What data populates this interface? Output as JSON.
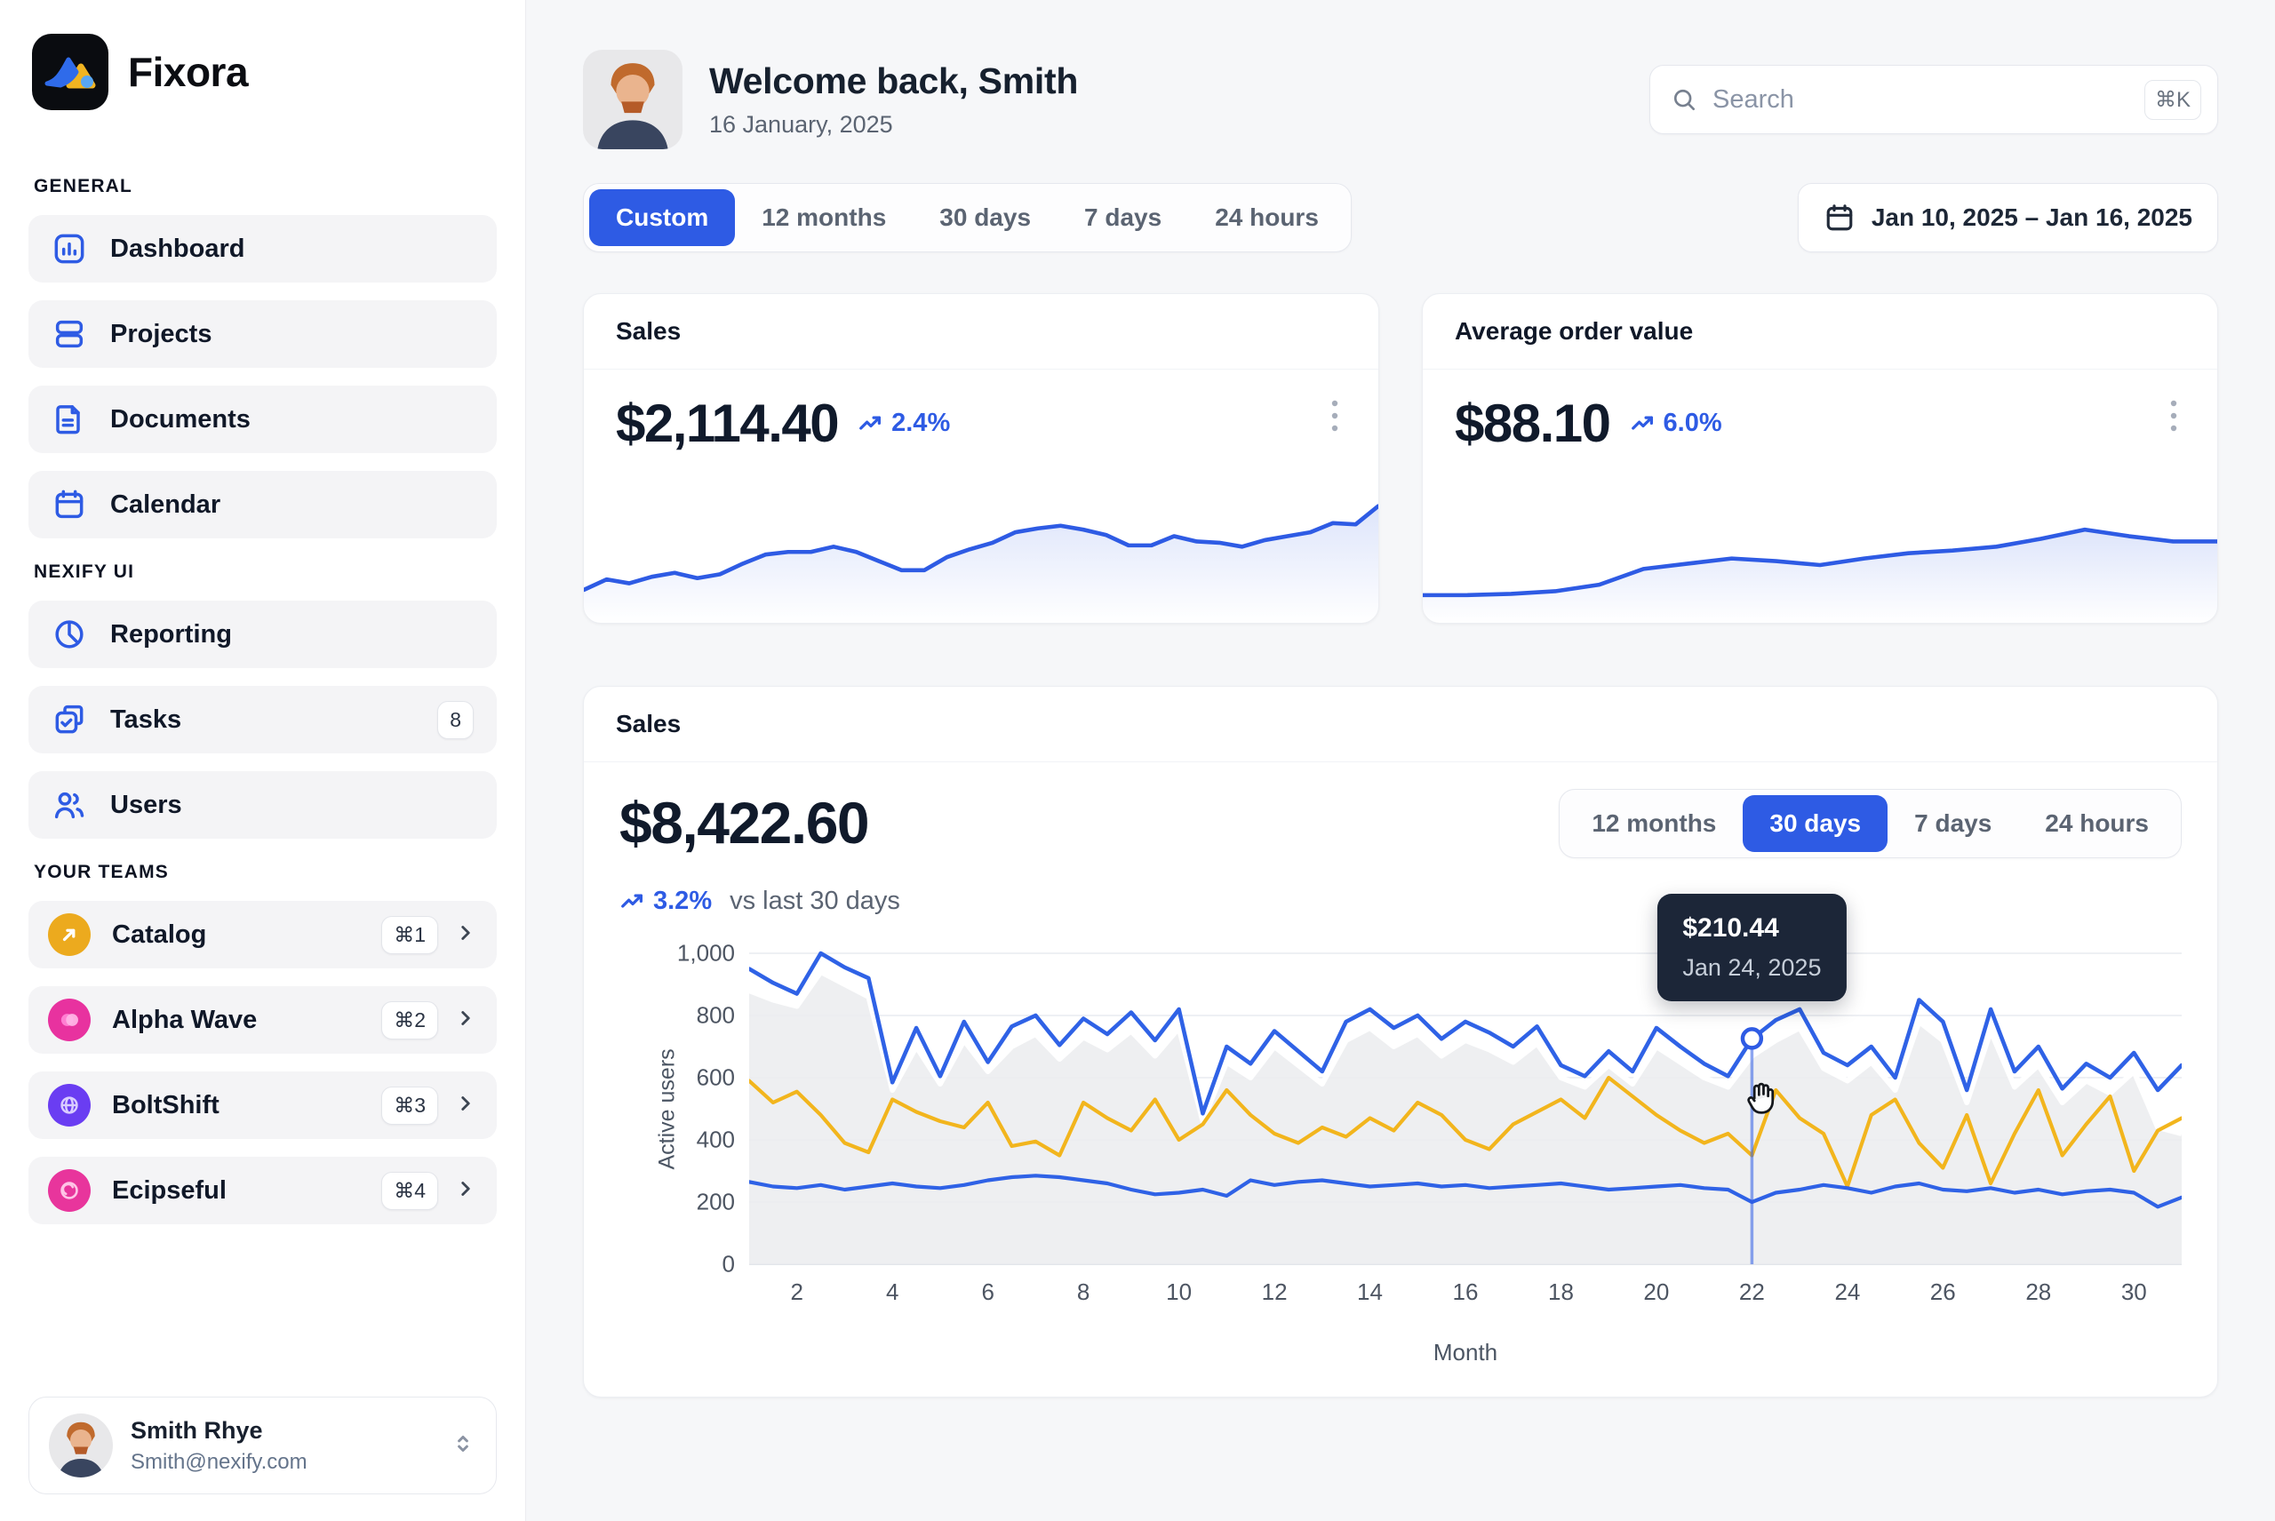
{
  "app": {
    "name": "Fixora"
  },
  "sidebar": {
    "sections": [
      {
        "label": "GENERAL",
        "items": [
          {
            "label": "Dashboard",
            "icon": "dashboard"
          },
          {
            "label": "Projects",
            "icon": "projects"
          },
          {
            "label": "Documents",
            "icon": "documents"
          },
          {
            "label": "Calendar",
            "icon": "calendar"
          }
        ]
      },
      {
        "label": "NEXIFY UI",
        "items": [
          {
            "label": "Reporting",
            "icon": "reporting"
          },
          {
            "label": "Tasks",
            "icon": "tasks",
            "badge": "8"
          },
          {
            "label": "Users",
            "icon": "users"
          }
        ]
      },
      {
        "label": "YOUR TEAMS",
        "teams": [
          {
            "name": "Catalog",
            "shortcut": "⌘1",
            "color": "#ecaa1e",
            "icon": "team-catalog"
          },
          {
            "name": "Alpha Wave",
            "shortcut": "⌘2",
            "color": "#e8329f",
            "icon": "team-alphawave"
          },
          {
            "name": "BoltShift",
            "shortcut": "⌘3",
            "color": "#6a3df2",
            "icon": "team-boltshift"
          },
          {
            "name": "Ecipseful",
            "shortcut": "⌘4",
            "color": "#e8359c",
            "icon": "team-ecipseful"
          }
        ]
      }
    ],
    "user": {
      "name": "Smith Rhye",
      "email": "Smith@nexify.com"
    }
  },
  "header": {
    "title": "Welcome back, Smith",
    "date": "16 January, 2025",
    "search": {
      "placeholder": "Search",
      "shortcut": "⌘K"
    }
  },
  "filters": {
    "range_tabs": [
      {
        "label": "Custom",
        "active": true
      },
      {
        "label": "12 months"
      },
      {
        "label": "30 days"
      },
      {
        "label": "7 days"
      },
      {
        "label": "24 hours"
      }
    ],
    "date_range": "Jan 10, 2025 – Jan 16, 2025"
  },
  "kpis": [
    {
      "title": "Sales",
      "value": "$2,114.40",
      "change": "2.4%",
      "trend": "up"
    },
    {
      "title": "Average order value",
      "value": "$88.10",
      "change": "6.0%",
      "trend": "up"
    }
  ],
  "sales_panel": {
    "title": "Sales",
    "value": "$8,422.60",
    "change": "3.2%",
    "compare_label": "vs last 30 days",
    "tabs": [
      {
        "label": "12 months"
      },
      {
        "label": "30 days",
        "active": true
      },
      {
        "label": "7 days"
      },
      {
        "label": "24 hours"
      }
    ],
    "tooltip": {
      "value": "$210.44",
      "date": "Jan 24, 2025"
    }
  },
  "colors": {
    "accent": "#2e5be4",
    "chart_blue": "#2f62e6",
    "chart_yellow": "#f2b51d",
    "tooltip_bg": "#1c2638",
    "area_gray": "#ebecee"
  },
  "chart_data": [
    {
      "id": "kpi-sales-spark",
      "type": "area",
      "title": "Sales sparkline",
      "ylim": [
        0,
        100
      ],
      "values": [
        14,
        22,
        19,
        24,
        27,
        23,
        26,
        34,
        41,
        43,
        43,
        47,
        43,
        36,
        29,
        29,
        39,
        45,
        50,
        58,
        61,
        63,
        60,
        56,
        48,
        48,
        55,
        51,
        50,
        47,
        52,
        55,
        58,
        65,
        64,
        78
      ]
    },
    {
      "id": "kpi-aov-spark",
      "type": "area",
      "title": "Average order value sparkline",
      "ylim": [
        0,
        100
      ],
      "values": [
        10,
        10,
        11,
        13,
        18,
        30,
        34,
        38,
        36,
        33,
        38,
        42,
        44,
        47,
        53,
        60,
        55,
        51,
        51
      ]
    },
    {
      "id": "main-sales",
      "type": "line",
      "title": "Sales — active users by day",
      "xlabel": "Month",
      "ylabel": "Active users",
      "x_start": 1,
      "x_step": 0.5,
      "xlim": [
        1,
        31
      ],
      "ylim": [
        0,
        1000
      ],
      "x_ticks": [
        2,
        4,
        6,
        8,
        10,
        12,
        14,
        16,
        18,
        20,
        22,
        24,
        26,
        28,
        30
      ],
      "y_ticks": [
        0,
        200,
        400,
        600,
        800,
        1000
      ],
      "y_tick_labels": [
        "0",
        "200",
        "400",
        "600",
        "800",
        "1,000"
      ],
      "series": [
        {
          "name": "previous-period",
          "style": "gray-area",
          "color": "#ebecee",
          "values": [
            880,
            850,
            830,
            940,
            900,
            860,
            560,
            700,
            580,
            720,
            620,
            700,
            740,
            660,
            730,
            690,
            750,
            670,
            760,
            460,
            650,
            600,
            700,
            640,
            580,
            720,
            760,
            700,
            740,
            670,
            720,
            690,
            650,
            710,
            600,
            570,
            640,
            580,
            700,
            650,
            600,
            570,
            670,
            720,
            760,
            630,
            590,
            650,
            560,
            780,
            720,
            520,
            750,
            570,
            640,
            520,
            590,
            550,
            620,
            440,
            420
          ]
        },
        {
          "name": "current-period",
          "style": "line",
          "color": "#2f62e6",
          "values": [
            950,
            905,
            870,
            1000,
            955,
            920,
            585,
            760,
            605,
            780,
            650,
            765,
            800,
            705,
            790,
            740,
            810,
            720,
            820,
            485,
            700,
            645,
            750,
            685,
            620,
            780,
            820,
            760,
            800,
            725,
            780,
            745,
            700,
            765,
            640,
            605,
            685,
            620,
            760,
            700,
            645,
            605,
            725,
            785,
            820,
            680,
            640,
            700,
            600,
            850,
            780,
            560,
            820,
            620,
            700,
            565,
            645,
            600,
            680,
            560,
            640
          ]
        },
        {
          "name": "secondary",
          "style": "line",
          "color": "#f2b51d",
          "values": [
            590,
            520,
            555,
            480,
            390,
            360,
            530,
            490,
            460,
            440,
            520,
            380,
            395,
            350,
            520,
            470,
            430,
            530,
            400,
            450,
            560,
            480,
            420,
            390,
            440,
            410,
            470,
            430,
            520,
            480,
            400,
            370,
            450,
            490,
            530,
            470,
            600,
            540,
            480,
            430,
            390,
            420,
            350,
            560,
            470,
            420,
            250,
            480,
            530,
            390,
            310,
            480,
            260,
            420,
            560,
            350,
            450,
            540,
            300,
            430,
            470
          ]
        },
        {
          "name": "baseline",
          "style": "line",
          "color": "#2f62e6",
          "values": [
            265,
            250,
            245,
            255,
            240,
            250,
            260,
            250,
            245,
            255,
            270,
            280,
            285,
            280,
            270,
            260,
            240,
            225,
            230,
            240,
            220,
            270,
            255,
            265,
            270,
            260,
            250,
            255,
            260,
            250,
            255,
            245,
            250,
            255,
            260,
            250,
            240,
            245,
            250,
            255,
            245,
            240,
            200,
            230,
            240,
            255,
            245,
            230,
            250,
            260,
            240,
            235,
            245,
            230,
            240,
            225,
            235,
            240,
            230,
            185,
            215
          ]
        }
      ],
      "marker": {
        "x": 22,
        "value": 726
      }
    }
  ]
}
